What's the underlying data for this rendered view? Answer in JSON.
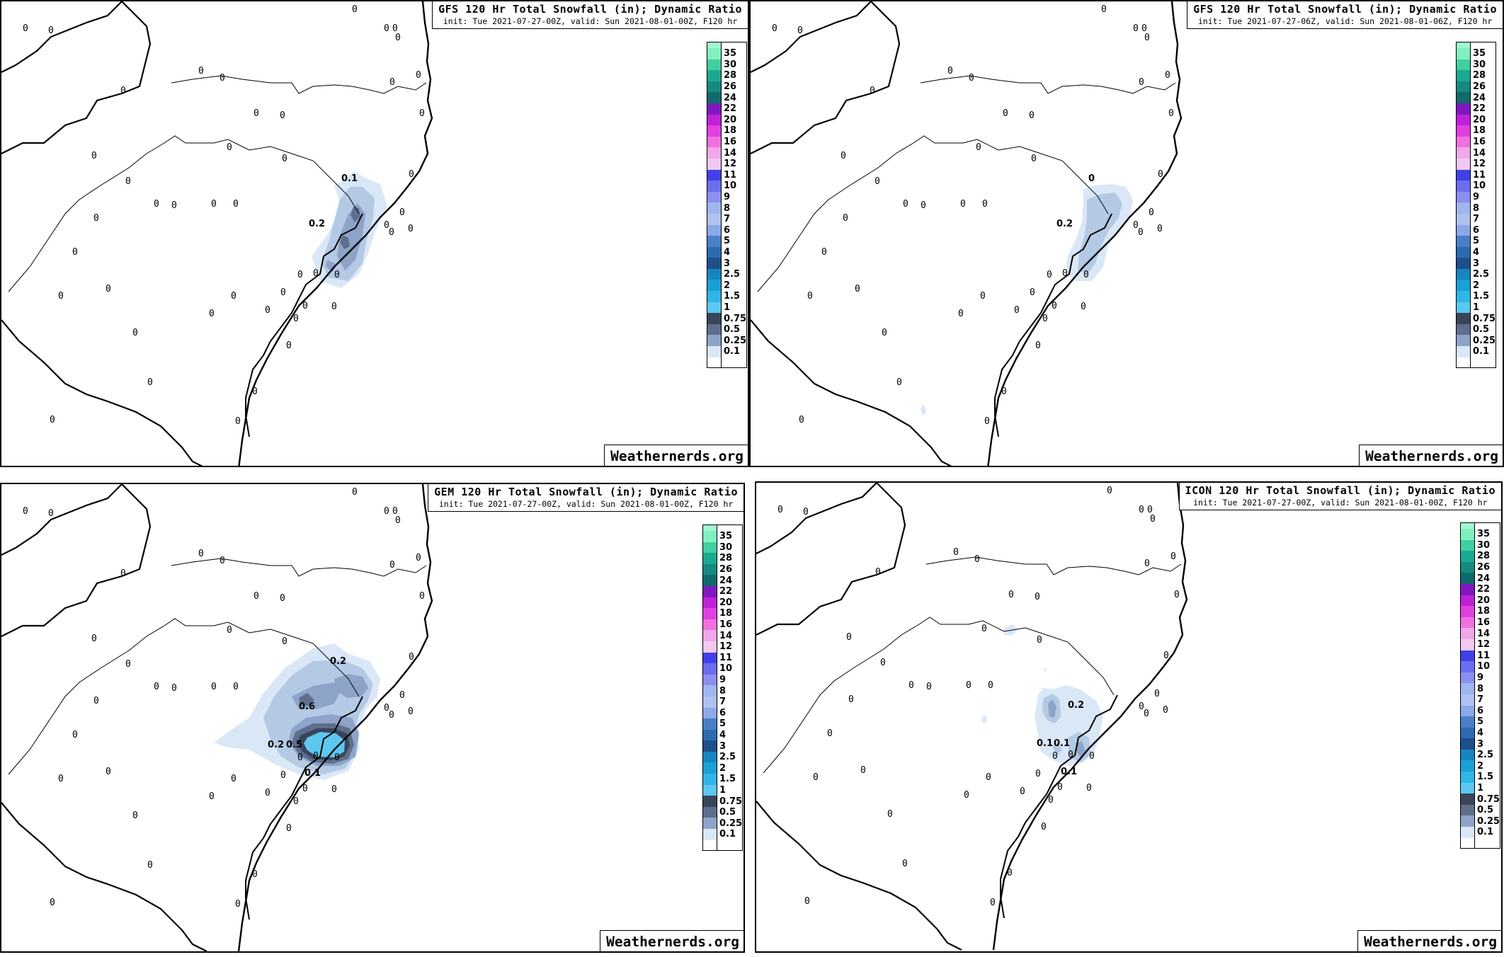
{
  "colors": {
    "legend": [
      "#ffffff",
      "#d9e7f7",
      "#b4c9e4",
      "#8ea3c8",
      "#5f6e8c",
      "#3a4559",
      "#5cc8f0",
      "#2fb5e8",
      "#19a0d6",
      "#1586c0",
      "#106aa2",
      "#1e4f8a",
      "#2c6bb0",
      "#4a7fc8",
      "#6d96dc",
      "#8ba8e8",
      "#9fb6ee",
      "#8c8ff0",
      "#6c6ef0",
      "#4040e8",
      "#f0c8f0",
      "#f088e8",
      "#f070e0",
      "#e040e0",
      "#c020d8",
      "#8018c0",
      "#106a6a",
      "#158a80",
      "#1aaa90",
      "#40d0a0",
      "#80f0c0"
    ],
    "snow_light": "#d9e7f7",
    "snow_mid": "#b4c9e4",
    "snow_dark": "#8ea3c8",
    "snow_darker": "#5f6e8c",
    "snow_darkest": "#3a4559",
    "cyan_core": "#5cc8f0"
  },
  "legend_labels": [
    "35",
    "30",
    "28",
    "26",
    "24",
    "22",
    "20",
    "18",
    "16",
    "14",
    "12",
    "11",
    "10",
    "9",
    "8",
    "7",
    "6",
    "5",
    "4",
    "3",
    "2.5",
    "2",
    "1.5",
    "1",
    "0.75",
    "0.5",
    "0.25",
    "0.1"
  ],
  "panels": [
    {
      "id": "gfs00",
      "title": "GFS 120 Hr Total Snowfall (in); Dynamic Ratio",
      "subtitle": "init: Tue 2021-07-27-00Z, valid: Sun 2021-08-01-00Z, F120 hr",
      "credit": "Weathernerds.org",
      "contour_labels": [
        "0.1",
        "0.2"
      ]
    },
    {
      "id": "gfs06",
      "title": "GFS 120 Hr Total Snowfall (in); Dynamic Ratio",
      "subtitle": "init: Tue 2021-07-27-06Z, valid: Sun 2021-08-01-06Z, F120 hr",
      "credit": "Weathernerds.org",
      "contour_labels": [
        "0",
        "0.2"
      ]
    },
    {
      "id": "gem00",
      "title": "GEM 120 Hr Total Snowfall (in); Dynamic Ratio",
      "subtitle": "init: Tue 2021-07-27-00Z, valid: Sun 2021-08-01-00Z, F120 hr",
      "credit": "Weathernerds.org",
      "contour_labels": [
        "0.2",
        "0.6",
        "0.2",
        "0.5",
        "0.1"
      ]
    },
    {
      "id": "icon00",
      "title": "ICON 120 Hr Total Snowfall (in); Dynamic Ratio",
      "subtitle": "init: Tue 2021-07-27-00Z, valid: Sun 2021-08-01-00Z, F120 hr",
      "credit": "Weathernerds.org",
      "contour_labels": [
        "0.2",
        "0.1",
        "0.1",
        "0.1"
      ]
    }
  ],
  "station_value": "0"
}
